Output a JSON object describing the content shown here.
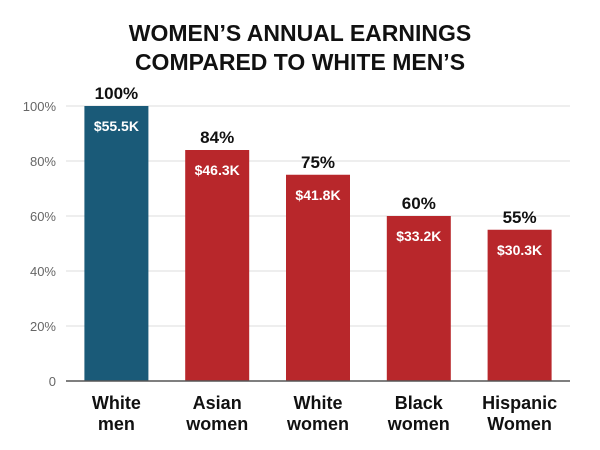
{
  "chart_data": {
    "type": "bar",
    "title_lines": [
      "WOMEN’S ANNUAL EARNINGS",
      "COMPARED TO WHITE MEN’S"
    ],
    "categories": [
      [
        "White",
        "men"
      ],
      [
        "Asian",
        "women"
      ],
      [
        "White",
        "women"
      ],
      [
        "Black",
        "women"
      ],
      [
        "Hispanic",
        "Women"
      ]
    ],
    "values": [
      100,
      84,
      75,
      60,
      55
    ],
    "value_labels": [
      "100%",
      "84%",
      "75%",
      "60%",
      "55%"
    ],
    "earnings_labels": [
      "$55.5K",
      "$46.3K",
      "$41.8K",
      "$33.2K",
      "$30.3K"
    ],
    "ylim": [
      0,
      100
    ],
    "yticks": [
      0,
      20,
      40,
      60,
      80,
      100
    ],
    "ytick_labels": [
      "0",
      "20%",
      "40%",
      "60%",
      "80%",
      "100%"
    ],
    "grid": true,
    "colors": {
      "highlight": "#1a5a78",
      "default": "#b8272b",
      "grid": "#dddddd",
      "axis": "#555555"
    },
    "highlight_index": 0
  }
}
